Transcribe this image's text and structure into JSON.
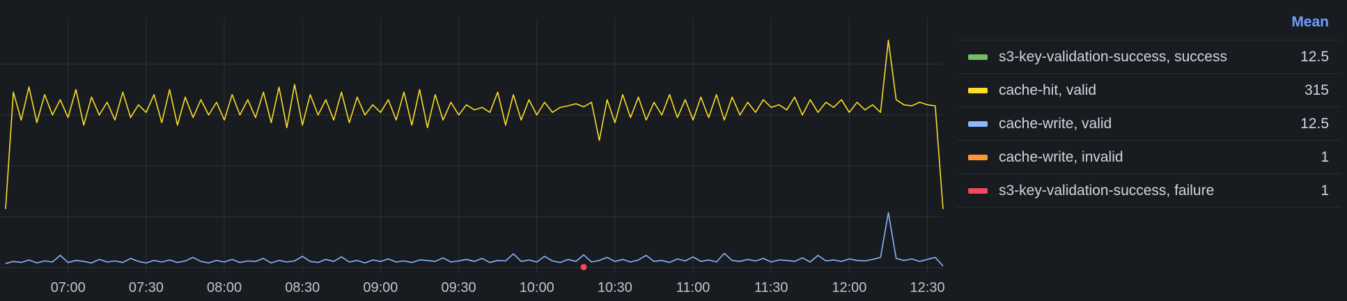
{
  "chart_data": {
    "type": "line",
    "x_start": "06:36",
    "x_interval_minutes": 3,
    "x_range": [
      "06:36",
      "12:36"
    ],
    "x_ticks": [
      "07:00",
      "07:30",
      "08:00",
      "08:30",
      "09:00",
      "09:30",
      "10:00",
      "10:30",
      "11:00",
      "11:30",
      "12:00",
      "12:30"
    ],
    "ylim": [
      0,
      500
    ],
    "y_gridlines": [
      0,
      100,
      200,
      300,
      400
    ],
    "y_tick_labels_visible": false,
    "grid": true,
    "legend_placement": "right",
    "legend_stat_header": "Mean",
    "series": [
      {
        "name": "s3-key-validation-success, success",
        "color": "#73bf69",
        "mean": "12.5",
        "values": []
      },
      {
        "name": "cache-hit, valid",
        "color": "#fade2a",
        "mean": "315",
        "values": [
          115,
          345,
          290,
          355,
          285,
          340,
          300,
          330,
          295,
          350,
          280,
          335,
          300,
          325,
          290,
          345,
          295,
          320,
          305,
          340,
          285,
          350,
          280,
          335,
          295,
          330,
          300,
          325,
          290,
          340,
          300,
          330,
          295,
          345,
          285,
          355,
          275,
          360,
          280,
          340,
          300,
          330,
          290,
          345,
          285,
          335,
          300,
          320,
          305,
          330,
          290,
          345,
          280,
          350,
          275,
          340,
          290,
          325,
          300,
          320,
          310,
          315,
          305,
          345,
          280,
          340,
          290,
          330,
          300,
          325,
          305,
          315,
          318,
          322,
          316,
          325,
          250,
          330,
          285,
          340,
          295,
          335,
          290,
          325,
          300,
          340,
          295,
          330,
          290,
          335,
          295,
          340,
          290,
          335,
          300,
          325,
          305,
          330,
          315,
          320,
          310,
          335,
          300,
          330,
          305,
          325,
          315,
          330,
          305,
          325,
          310,
          320,
          305,
          447,
          330,
          320,
          318,
          325,
          320,
          318,
          115
        ]
      },
      {
        "name": "cache-write, valid",
        "color": "#8ab8ff",
        "mean": "12.5",
        "values": [
          8,
          12,
          10,
          15,
          9,
          13,
          11,
          24,
          10,
          14,
          12,
          9,
          16,
          11,
          13,
          10,
          18,
          12,
          9,
          14,
          11,
          15,
          10,
          13,
          20,
          12,
          9,
          14,
          11,
          16,
          10,
          13,
          12,
          18,
          9,
          14,
          11,
          13,
          22,
          12,
          10,
          16,
          12,
          21,
          11,
          14,
          9,
          15,
          12,
          17,
          11,
          13,
          10,
          15,
          14,
          12,
          19,
          11,
          13,
          16,
          12,
          18,
          10,
          14,
          13,
          27,
          12,
          15,
          11,
          22,
          13,
          10,
          16,
          12,
          25,
          11,
          14,
          20,
          12,
          16,
          11,
          15,
          24,
          12,
          14,
          10,
          17,
          13,
          21,
          12,
          15,
          11,
          28,
          14,
          12,
          16,
          13,
          18,
          11,
          15,
          14,
          12,
          19,
          11,
          24,
          13,
          15,
          12,
          17,
          14,
          13,
          16,
          20,
          108,
          18,
          14,
          17,
          12,
          16,
          20,
          3
        ]
      },
      {
        "name": "cache-write, invalid",
        "color": "#ff9830",
        "mean": "1",
        "values": []
      },
      {
        "name": "s3-key-validation-success, failure",
        "color": "#f2495c",
        "mean": "1",
        "points": [
          {
            "x": "10:18",
            "y": 1
          }
        ]
      }
    ]
  }
}
